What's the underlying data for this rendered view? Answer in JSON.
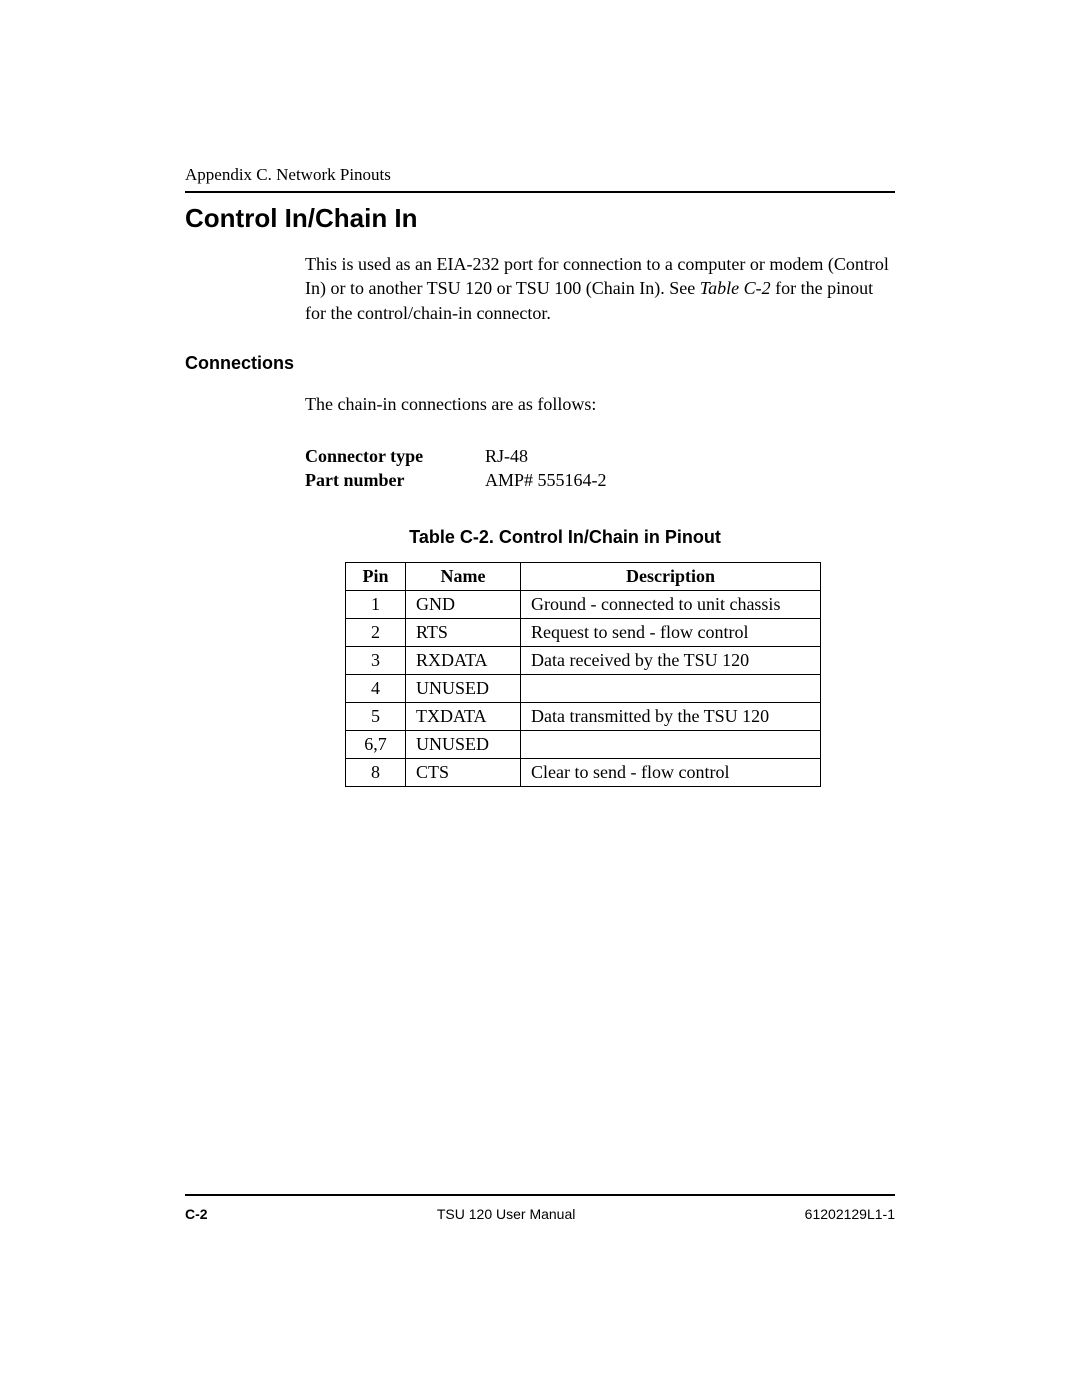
{
  "header": {
    "appendix_line": "Appendix C. Network Pinouts"
  },
  "section": {
    "title": "Control In/Chain In",
    "intro_pre": "This is used as an EIA-232 port for connection to a computer or modem (Control In) or to another TSU 120 or TSU 100 (Chain In). See ",
    "intro_ref": "Table C-2",
    "intro_post": " for the pinout for the control/chain-in connector."
  },
  "connections": {
    "heading": "Connections",
    "lead": "The chain-in connections are as follows:",
    "rows": [
      {
        "label": "Connector type",
        "value": "RJ-48"
      },
      {
        "label": "Part number",
        "value": "AMP# 555164-2"
      }
    ]
  },
  "table": {
    "caption": "Table C-2.  Control In/Chain in Pinout",
    "columns": [
      "Pin",
      "Name",
      "Description"
    ],
    "rows": [
      {
        "pin": "1",
        "name": "GND",
        "desc": "Ground - connected to unit chassis"
      },
      {
        "pin": "2",
        "name": "RTS",
        "desc": "Request to send - flow control"
      },
      {
        "pin": "3",
        "name": "RXDATA",
        "desc": "Data received by the TSU 120"
      },
      {
        "pin": "4",
        "name": "UNUSED",
        "desc": ""
      },
      {
        "pin": "5",
        "name": "TXDATA",
        "desc": "Data transmitted by the TSU 120"
      },
      {
        "pin": "6,7",
        "name": "UNUSED",
        "desc": ""
      },
      {
        "pin": "8",
        "name": "CTS",
        "desc": "Clear to send - flow control"
      }
    ]
  },
  "footer": {
    "page_num": "C-2",
    "manual_title": "TSU 120 User Manual",
    "doc_number": "61202129L1-1"
  }
}
